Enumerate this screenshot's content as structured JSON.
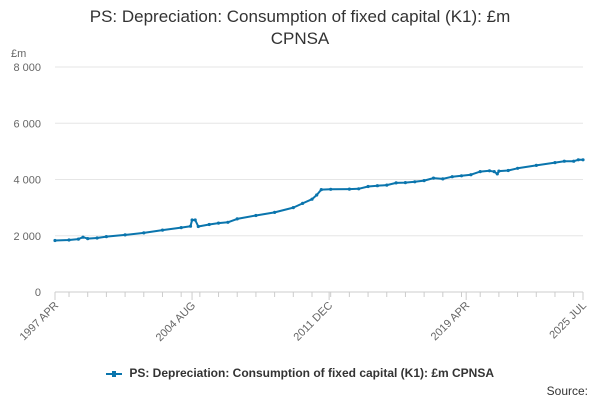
{
  "chart_data": {
    "type": "line",
    "title_line1": "PS: Depreciation: Consumption of fixed capital (K1): £m",
    "title_line2": "CPNSA",
    "ylabel": "£m",
    "ylim": [
      0,
      8000
    ],
    "yticks": [
      0,
      2000,
      4000,
      6000,
      8000
    ],
    "ytick_labels": [
      "0",
      "2 000",
      "4 000",
      "6 000",
      "8 000"
    ],
    "xlim": [
      1997.25,
      2025.5
    ],
    "xticks": [
      1997.25,
      2004.583,
      2011.917,
      2019.25,
      2025.5
    ],
    "xtick_labels": [
      "1997 APR",
      "2004 AUG",
      "2011 DEC",
      "2019 APR",
      "2025 JUL"
    ],
    "grid": true,
    "legend_position": "bottom-center",
    "series": [
      {
        "name": "PS: Depreciation: Consumption of fixed capital (K1): £m CPNSA",
        "color": "#0a75ad",
        "points": [
          [
            1997.25,
            1830
          ],
          [
            1998.0,
            1850
          ],
          [
            1998.5,
            1880
          ],
          [
            1998.75,
            1950
          ],
          [
            1999.0,
            1900
          ],
          [
            1999.5,
            1920
          ],
          [
            2000.0,
            1970
          ],
          [
            2001.0,
            2030
          ],
          [
            2002.0,
            2100
          ],
          [
            2003.0,
            2200
          ],
          [
            2004.0,
            2290
          ],
          [
            2004.5,
            2340
          ],
          [
            2004.583,
            2560
          ],
          [
            2004.75,
            2560
          ],
          [
            2004.917,
            2330
          ],
          [
            2005.5,
            2400
          ],
          [
            2006.0,
            2450
          ],
          [
            2006.5,
            2480
          ],
          [
            2007.0,
            2600
          ],
          [
            2008.0,
            2720
          ],
          [
            2009.0,
            2830
          ],
          [
            2010.0,
            3000
          ],
          [
            2010.5,
            3150
          ],
          [
            2011.0,
            3300
          ],
          [
            2011.25,
            3450
          ],
          [
            2011.5,
            3640
          ],
          [
            2012.0,
            3650
          ],
          [
            2013.0,
            3660
          ],
          [
            2013.5,
            3670
          ],
          [
            2014.0,
            3750
          ],
          [
            2014.5,
            3780
          ],
          [
            2015.0,
            3800
          ],
          [
            2015.5,
            3880
          ],
          [
            2016.0,
            3890
          ],
          [
            2016.5,
            3920
          ],
          [
            2017.0,
            3960
          ],
          [
            2017.5,
            4050
          ],
          [
            2018.0,
            4020
          ],
          [
            2018.5,
            4100
          ],
          [
            2019.0,
            4130
          ],
          [
            2019.5,
            4170
          ],
          [
            2020.0,
            4280
          ],
          [
            2020.5,
            4310
          ],
          [
            2020.75,
            4280
          ],
          [
            2020.917,
            4200
          ],
          [
            2021.0,
            4300
          ],
          [
            2021.5,
            4320
          ],
          [
            2022.0,
            4400
          ],
          [
            2023.0,
            4500
          ],
          [
            2024.0,
            4600
          ],
          [
            2024.5,
            4650
          ],
          [
            2025.0,
            4650
          ],
          [
            2025.25,
            4700
          ],
          [
            2025.5,
            4700
          ]
        ]
      }
    ]
  },
  "legend_label": "PS: Depreciation: Consumption of fixed capital (K1): £m CPNSA",
  "source_label": "Source:"
}
